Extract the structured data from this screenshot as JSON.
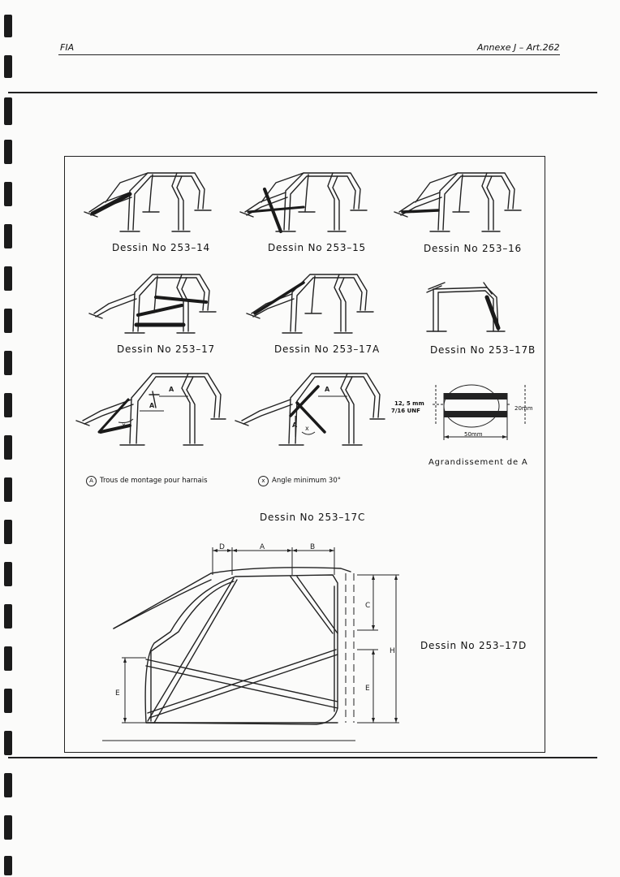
{
  "header": {
    "left": "FIA",
    "right": "Annexe J – Art.262"
  },
  "drawings": {
    "d14": "Dessin No 253–14",
    "d15": "Dessin No 253–15",
    "d16": "Dessin No 253–16",
    "d17": "Dessin No 253–17",
    "d17a": "Dessin No 253–17A",
    "d17b": "Dessin No 253–17B",
    "d17c": "Dessin No 253–17C",
    "d17d": "Dessin No 253–17D"
  },
  "legend": {
    "holes": "Trous de montage pour harnais",
    "holes_symbol": "A",
    "angle": "Angle minimum 30°",
    "angle_symbol": "x"
  },
  "detail": {
    "title": "Agrandissement de A",
    "thread_size": "12, 5 mm",
    "thread_unf": "7/16 UNF",
    "width_20": "20mm",
    "width_50": "50mm"
  },
  "labels": {
    "A": "A",
    "B": "B",
    "C": "C",
    "D": "D",
    "E": "E",
    "H": "H",
    "x": "x"
  }
}
